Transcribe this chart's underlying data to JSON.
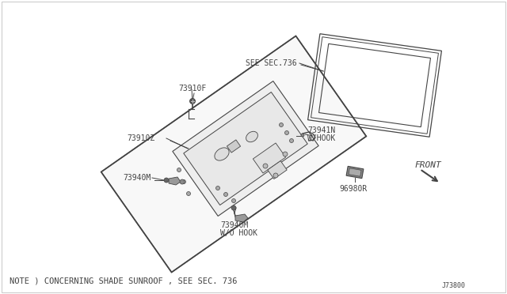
{
  "bg_color": "#ffffff",
  "line_color": "#444444",
  "text_color": "#444444",
  "note_text": "NOTE ) CONCERNING SHADE SUNROOF , SEE SEC. 736",
  "part_number_bottom": "J73800",
  "labels": {
    "SEE_SEC736": "SEE SEC.736",
    "73910F": "73910F",
    "73910Z": "73910Z",
    "73941N": "73941N\nW/HOOK",
    "73940M_left": "73940M",
    "73940M_bottom": "73940M\nW/O HOOK",
    "96980R": "96980R",
    "FRONT": "FRONT"
  },
  "font_size_label": 7,
  "font_size_note": 7.5,
  "font_size_small": 6
}
